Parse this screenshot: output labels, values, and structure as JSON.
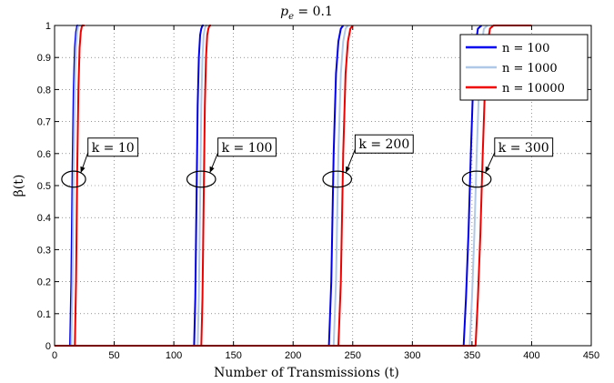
{
  "chart_data": {
    "type": "line",
    "title": "p_e = 0.1",
    "title_parts": {
      "base": "p",
      "sub": "e",
      "rest": " = 0.1"
    },
    "xlabel": "Number of Transmissions (t)",
    "ylabel": "β(t)",
    "xlim": [
      0,
      450
    ],
    "ylim": [
      0,
      1
    ],
    "xticks": [
      0,
      50,
      100,
      150,
      200,
      250,
      300,
      350,
      400,
      450
    ],
    "yticks": [
      0,
      0.1,
      0.2,
      0.3,
      0.4,
      0.5,
      0.6,
      0.7,
      0.8,
      0.9,
      1
    ],
    "grid": true,
    "legend_position": "top-right",
    "series": [
      {
        "name": "n = 100",
        "color": "#0000ee",
        "segments": [
          {
            "k": 10,
            "x": [
              0,
              13,
              14,
              15,
              16,
              17,
              18,
              19,
              20,
              21
            ],
            "y": [
              0,
              0,
              0.2,
              0.55,
              0.8,
              0.93,
              0.98,
              1,
              1,
              1
            ]
          },
          {
            "k": 100,
            "x": [
              13,
              117,
              118,
              119,
              120,
              121,
              122,
              123,
              124,
              125
            ],
            "y": [
              0,
              0,
              0.15,
              0.45,
              0.75,
              0.9,
              0.97,
              0.99,
              1,
              1
            ]
          },
          {
            "k": 200,
            "x": [
              117,
              230,
              232,
              233,
              234,
              236,
              238,
              240,
              242
            ],
            "y": [
              0,
              0,
              0.2,
              0.4,
              0.6,
              0.85,
              0.95,
              0.99,
              1
            ]
          },
          {
            "k": 300,
            "x": [
              230,
              343,
              345,
              347,
              349,
              351,
              353,
              355,
              358
            ],
            "y": [
              0,
              0,
              0.15,
              0.35,
              0.6,
              0.82,
              0.94,
              0.99,
              1
            ]
          }
        ]
      },
      {
        "name": "n = 1000",
        "color": "#b0c8e8",
        "segments": [
          {
            "k": 10,
            "x": [
              0,
              14,
              15,
              16,
              17,
              18,
              19,
              20,
              21,
              22
            ],
            "y": [
              0,
              0,
              0.2,
              0.55,
              0.8,
              0.93,
              0.98,
              1,
              1,
              1
            ]
          },
          {
            "k": 100,
            "x": [
              14,
              120,
              121,
              122,
              123,
              124,
              125,
              126,
              127,
              128
            ],
            "y": [
              0,
              0,
              0.15,
              0.45,
              0.75,
              0.9,
              0.97,
              0.99,
              1,
              1
            ]
          },
          {
            "k": 200,
            "x": [
              120,
              234,
              236,
              237,
              238,
              240,
              242,
              244,
              246
            ],
            "y": [
              0,
              0,
              0.2,
              0.4,
              0.6,
              0.85,
              0.95,
              0.99,
              1
            ]
          },
          {
            "k": 300,
            "x": [
              234,
              348,
              350,
              352,
              354,
              356,
              358,
              360,
              363
            ],
            "y": [
              0,
              0,
              0.15,
              0.35,
              0.6,
              0.82,
              0.94,
              0.99,
              1
            ]
          }
        ]
      },
      {
        "name": "n = 10000",
        "color": "#ee0000",
        "segments": [
          {
            "k": 10,
            "x": [
              0,
              17,
              18,
              19,
              20,
              21,
              22,
              23,
              24,
              25
            ],
            "y": [
              0,
              0,
              0.2,
              0.55,
              0.8,
              0.93,
              0.98,
              1,
              1,
              1
            ]
          },
          {
            "k": 100,
            "x": [
              17,
              123,
              124,
              125,
              126,
              127,
              128,
              129,
              130,
              131
            ],
            "y": [
              0,
              0,
              0.15,
              0.45,
              0.75,
              0.9,
              0.97,
              0.99,
              1,
              1
            ]
          },
          {
            "k": 200,
            "x": [
              123,
              238,
              240,
              241,
              242,
              244,
              246,
              248,
              250
            ],
            "y": [
              0,
              0,
              0.2,
              0.4,
              0.6,
              0.85,
              0.95,
              0.99,
              1
            ]
          },
          {
            "k": 300,
            "x": [
              238,
              353,
              355,
              357,
              359,
              361,
              363,
              365,
              368,
              400
            ],
            "y": [
              0,
              0,
              0.15,
              0.35,
              0.6,
              0.82,
              0.94,
              0.99,
              1,
              1
            ]
          }
        ]
      }
    ],
    "annotations": [
      {
        "label": "k = 10",
        "ellipse_center": [
          16,
          0.52
        ],
        "ellipse_rx": 10,
        "ellipse_ry": 0.025,
        "box_anchor": [
          28,
          0.62
        ]
      },
      {
        "label": "k = 100",
        "ellipse_center": [
          123,
          0.52
        ],
        "ellipse_rx": 12,
        "ellipse_ry": 0.025,
        "box_anchor": [
          137,
          0.62
        ]
      },
      {
        "label": "k = 200",
        "ellipse_center": [
          237,
          0.52
        ],
        "ellipse_rx": 12,
        "ellipse_ry": 0.025,
        "box_anchor": [
          252,
          0.63
        ]
      },
      {
        "label": "k = 300",
        "ellipse_center": [
          354,
          0.52
        ],
        "ellipse_rx": 12,
        "ellipse_ry": 0.025,
        "box_anchor": [
          369,
          0.62
        ]
      }
    ]
  }
}
